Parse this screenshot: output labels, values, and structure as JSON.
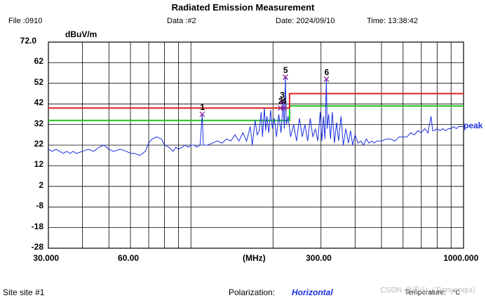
{
  "header": {
    "title": "Radiated Emission Measurement",
    "file": "File :0910",
    "data": "Data :#2",
    "date": "Date: 2024/09/10",
    "time": "Time: 13:38:42"
  },
  "footer": {
    "site": "Site  site #1",
    "polarization_label": "Polarization:",
    "polarization_value": "Horizontal",
    "temperature_label": "Temperature:",
    "temperature_unit": "°C"
  },
  "watermark": "CSDN @天山（Tianyonqui）",
  "chart_data": {
    "type": "line",
    "title": "Radiated Emission Measurement",
    "ylabel": "dBuV/m",
    "xlabel": "(MHz)",
    "x_scale": "log",
    "xlim": [
      30,
      1000
    ],
    "ylim": [
      -28,
      72
    ],
    "y_ticks": [
      "72.0",
      "62",
      "52",
      "42",
      "32",
      "22",
      "12",
      "2",
      "-8",
      "-18",
      "-28"
    ],
    "x_ticks": [
      {
        "label": "30.000",
        "value": 30
      },
      {
        "label": "60.00",
        "value": 60
      },
      {
        "label": "300.00",
        "value": 300
      },
      {
        "label": "1000.000",
        "value": 1000
      }
    ],
    "grid": true,
    "series_label": "peak",
    "colors": {
      "trace": "#1a2fe0",
      "limit": "#e02020",
      "margin": "#22c01f",
      "marker": "#8a1a9a",
      "grid": "#000000"
    },
    "limit_line": [
      {
        "x": 30,
        "y": 40
      },
      {
        "x": 230,
        "y": 40
      },
      {
        "x": 230,
        "y": 47
      },
      {
        "x": 1000,
        "y": 47
      }
    ],
    "margin_line": [
      {
        "x": 30,
        "y": 34
      },
      {
        "x": 230,
        "y": 34
      },
      {
        "x": 230,
        "y": 41
      },
      {
        "x": 1000,
        "y": 41
      }
    ],
    "trace": [
      [
        30,
        20
      ],
      [
        31,
        19
      ],
      [
        32,
        20
      ],
      [
        33,
        19
      ],
      [
        34,
        18
      ],
      [
        35,
        19
      ],
      [
        36,
        18
      ],
      [
        37,
        19
      ],
      [
        38,
        18
      ],
      [
        40,
        19
      ],
      [
        42,
        20
      ],
      [
        44,
        19
      ],
      [
        46,
        21
      ],
      [
        48,
        22
      ],
      [
        50,
        20
      ],
      [
        52,
        19
      ],
      [
        55,
        20
      ],
      [
        58,
        19
      ],
      [
        60,
        18
      ],
      [
        62,
        18
      ],
      [
        65,
        17
      ],
      [
        68,
        19
      ],
      [
        70,
        23
      ],
      [
        72,
        25
      ],
      [
        75,
        26
      ],
      [
        78,
        25
      ],
      [
        80,
        22
      ],
      [
        83,
        21
      ],
      [
        86,
        19
      ],
      [
        88,
        21
      ],
      [
        90,
        20
      ],
      [
        93,
        21
      ],
      [
        95,
        22
      ],
      [
        98,
        21
      ],
      [
        100,
        22
      ],
      [
        103,
        22
      ],
      [
        105,
        21
      ],
      [
        108,
        22
      ],
      [
        110,
        37
      ],
      [
        111,
        22
      ],
      [
        115,
        22
      ],
      [
        120,
        23
      ],
      [
        125,
        24
      ],
      [
        130,
        23
      ],
      [
        135,
        25
      ],
      [
        140,
        24
      ],
      [
        145,
        27
      ],
      [
        150,
        24
      ],
      [
        155,
        28
      ],
      [
        160,
        24
      ],
      [
        165,
        31
      ],
      [
        168,
        22
      ],
      [
        172,
        34
      ],
      [
        175,
        27
      ],
      [
        178,
        29
      ],
      [
        181,
        38
      ],
      [
        183,
        26
      ],
      [
        186,
        40
      ],
      [
        188,
        29
      ],
      [
        190,
        36
      ],
      [
        193,
        28
      ],
      [
        196,
        39
      ],
      [
        199,
        30
      ],
      [
        202,
        35
      ],
      [
        206,
        26
      ],
      [
        210,
        37
      ],
      [
        214,
        28
      ],
      [
        218,
        43
      ],
      [
        220,
        30
      ],
      [
        222,
        55
      ],
      [
        224,
        32
      ],
      [
        227,
        36
      ],
      [
        232,
        26
      ],
      [
        238,
        32
      ],
      [
        244,
        24
      ],
      [
        250,
        35
      ],
      [
        256,
        26
      ],
      [
        262,
        32
      ],
      [
        268,
        24
      ],
      [
        274,
        35
      ],
      [
        280,
        26
      ],
      [
        286,
        30
      ],
      [
        292,
        24
      ],
      [
        298,
        38
      ],
      [
        302,
        24
      ],
      [
        306,
        36
      ],
      [
        310,
        25
      ],
      [
        314,
        54
      ],
      [
        316,
        30
      ],
      [
        320,
        37
      ],
      [
        325,
        25
      ],
      [
        330,
        38
      ],
      [
        336,
        23
      ],
      [
        342,
        33
      ],
      [
        348,
        24
      ],
      [
        355,
        36
      ],
      [
        362,
        22
      ],
      [
        370,
        30
      ],
      [
        378,
        23
      ],
      [
        385,
        29
      ],
      [
        392,
        22
      ],
      [
        400,
        27
      ],
      [
        410,
        23
      ],
      [
        420,
        24
      ],
      [
        430,
        22
      ],
      [
        440,
        25
      ],
      [
        450,
        23
      ],
      [
        460,
        24
      ],
      [
        470,
        23
      ],
      [
        480,
        24
      ],
      [
        500,
        24
      ],
      [
        520,
        25
      ],
      [
        540,
        25
      ],
      [
        560,
        24
      ],
      [
        580,
        26
      ],
      [
        600,
        26
      ],
      [
        620,
        26
      ],
      [
        640,
        28
      ],
      [
        660,
        27
      ],
      [
        680,
        29
      ],
      [
        700,
        28
      ],
      [
        720,
        30
      ],
      [
        740,
        28
      ],
      [
        760,
        36
      ],
      [
        770,
        29
      ],
      [
        780,
        29
      ],
      [
        800,
        30
      ],
      [
        820,
        29
      ],
      [
        840,
        30
      ],
      [
        860,
        29
      ],
      [
        880,
        30
      ],
      [
        900,
        30
      ],
      [
        920,
        31
      ],
      [
        940,
        30
      ],
      [
        960,
        31
      ],
      [
        980,
        31
      ],
      [
        1000,
        31
      ]
    ],
    "markers": [
      {
        "label": "1",
        "x": 110,
        "y": 37
      },
      {
        "label": "2",
        "x": 213,
        "y": 40
      },
      {
        "label": "3",
        "x": 216,
        "y": 43
      },
      {
        "label": "4",
        "x": 219,
        "y": 40
      },
      {
        "label": "5",
        "x": 222,
        "y": 55
      },
      {
        "label": "6",
        "x": 314,
        "y": 54
      }
    ]
  }
}
